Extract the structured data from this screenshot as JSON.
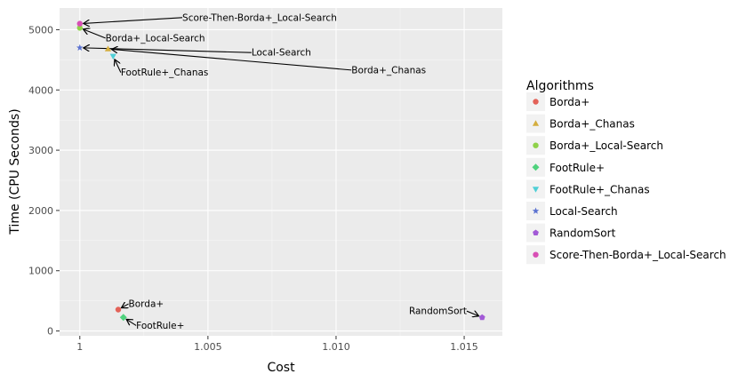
{
  "chart_data": {
    "type": "scatter",
    "xlabel": "Cost",
    "ylabel": "Time (CPU Seconds)",
    "xlim": [
      0.99921,
      1.01649
    ],
    "ylim": [
      -80,
      5360
    ],
    "x_ticks": [
      1,
      1.005,
      1.01,
      1.015
    ],
    "x_tick_labels": [
      "1",
      "1.005",
      "1.010",
      "1.015"
    ],
    "y_ticks": [
      0,
      1000,
      2000,
      3000,
      4000,
      5000
    ],
    "y_tick_labels": [
      "0",
      "1000",
      "2000",
      "3000",
      "4000",
      "5000"
    ],
    "grid": true,
    "legend": {
      "title": "Algorithms",
      "position": "right"
    },
    "series": [
      {
        "name": "Borda+",
        "color": "#E36258",
        "shape": "circle",
        "x": 1.0015,
        "y": 355
      },
      {
        "name": "Borda+_Chanas",
        "color": "#D4AE3F",
        "shape": "triangle-up",
        "x": 1.0011,
        "y": 4680
      },
      {
        "name": "Borda+_Local-Search",
        "color": "#8FD24A",
        "shape": "circle",
        "x": 1.0,
        "y": 5030
      },
      {
        "name": "FootRule+",
        "color": "#4FD27D",
        "shape": "diamond",
        "x": 1.0017,
        "y": 225
      },
      {
        "name": "FootRule+_Chanas",
        "color": "#4FCFD6",
        "shape": "triangle-down",
        "x": 1.0013,
        "y": 4560
      },
      {
        "name": "Local-Search",
        "color": "#5C73D1",
        "shape": "star",
        "x": 1.0,
        "y": 4700
      },
      {
        "name": "RandomSort",
        "color": "#A25AD6",
        "shape": "pentagon",
        "x": 1.0157,
        "y": 225
      },
      {
        "name": "Score-Then-Borda+_Local-Search",
        "color": "#D84FB5",
        "shape": "circle",
        "x": 1.0,
        "y": 5100
      }
    ],
    "annotations": [
      {
        "text": "Score-Then-Borda+_Local-Search",
        "point_x": 1.0,
        "point_y": 5100,
        "text_x": 1.004,
        "text_y": 5200,
        "anchor": "start"
      },
      {
        "text": "Borda+_Local-Search",
        "point_x": 1.0,
        "point_y": 5030,
        "text_x": 1.001,
        "text_y": 4860,
        "anchor": "start"
      },
      {
        "text": "Local-Search",
        "point_x": 1.0,
        "point_y": 4700,
        "text_x": 1.0067,
        "text_y": 4620,
        "anchor": "start"
      },
      {
        "text": "Borda+_Chanas",
        "point_x": 1.0011,
        "point_y": 4680,
        "text_x": 1.0106,
        "text_y": 4330,
        "anchor": "start"
      },
      {
        "text": "FootRule+_Chanas",
        "point_x": 1.0013,
        "point_y": 4560,
        "text_x": 1.0016,
        "text_y": 4290,
        "anchor": "start"
      },
      {
        "text": "Borda+",
        "point_x": 1.0015,
        "point_y": 355,
        "text_x": 1.0019,
        "text_y": 450,
        "anchor": "start"
      },
      {
        "text": "FootRule+",
        "point_x": 1.0017,
        "point_y": 225,
        "text_x": 1.0022,
        "text_y": 90,
        "anchor": "start"
      },
      {
        "text": "RandomSort",
        "point_x": 1.0157,
        "point_y": 225,
        "text_x": 1.0151,
        "text_y": 330,
        "anchor": "end"
      }
    ]
  }
}
